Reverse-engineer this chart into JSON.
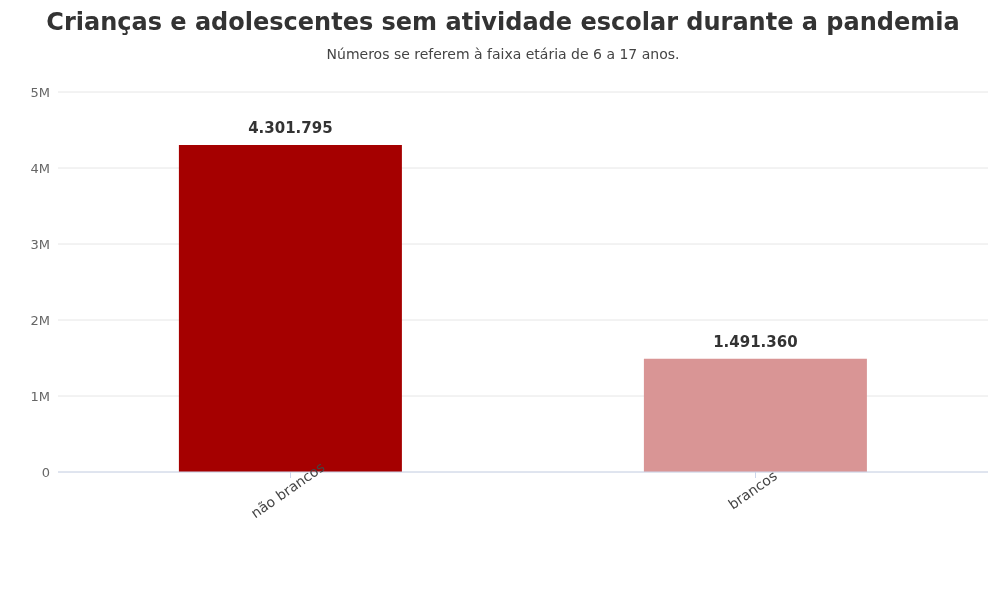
{
  "chart_data": {
    "type": "bar",
    "title": "Crianças e adolescentes sem atividade escolar durante a pandemia",
    "subtitle": "Números se referem à faixa etária de 6 a 17 anos.",
    "categories": [
      "não brancos",
      "brancos"
    ],
    "values": [
      4301795,
      1491360
    ],
    "colors": [
      "#a50000",
      "#d99595"
    ],
    "value_labels": [
      "4.301.795",
      "1.491.360"
    ],
    "ylim": [
      0,
      5000000
    ],
    "yticks": [
      {
        "value": 0,
        "label": "0"
      },
      {
        "value": 1000000,
        "label": "1M"
      },
      {
        "value": 2000000,
        "label": "2M"
      },
      {
        "value": 3000000,
        "label": "3M"
      },
      {
        "value": 4000000,
        "label": "4M"
      },
      {
        "value": 5000000,
        "label": "5M"
      }
    ],
    "grid": "y"
  }
}
